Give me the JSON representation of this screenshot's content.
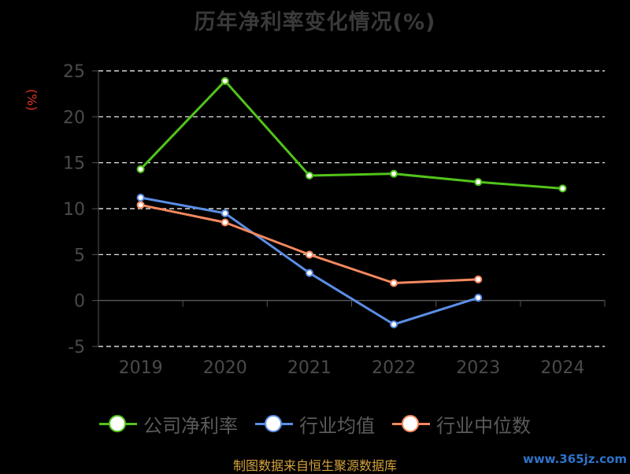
{
  "chart_data": {
    "type": "line",
    "title": "历年净利率变化情况(%)",
    "ylabel": "(%)",
    "xlabel": "",
    "categories": [
      "2019",
      "2020",
      "2021",
      "2022",
      "2023",
      "2024"
    ],
    "ylim": [
      -5,
      25
    ],
    "yticks": [
      -5,
      0,
      5,
      10,
      15,
      20,
      25
    ],
    "grid": true,
    "legend_position": "bottom",
    "series": [
      {
        "name": "公司净利率",
        "color": "#52c41a",
        "values": [
          14.3,
          23.9,
          13.6,
          13.8,
          12.9,
          12.2
        ]
      },
      {
        "name": "行业均值",
        "color": "#5b8ee6",
        "values": [
          11.2,
          9.5,
          3.0,
          -2.6,
          0.3,
          null
        ]
      },
      {
        "name": "行业中位数",
        "color": "#f4895f",
        "values": [
          10.4,
          8.5,
          5.0,
          1.9,
          2.3,
          null
        ]
      }
    ]
  },
  "footer": {
    "source": "制图数据来自恒生聚源数据库",
    "watermark": "www.365jz.com"
  }
}
